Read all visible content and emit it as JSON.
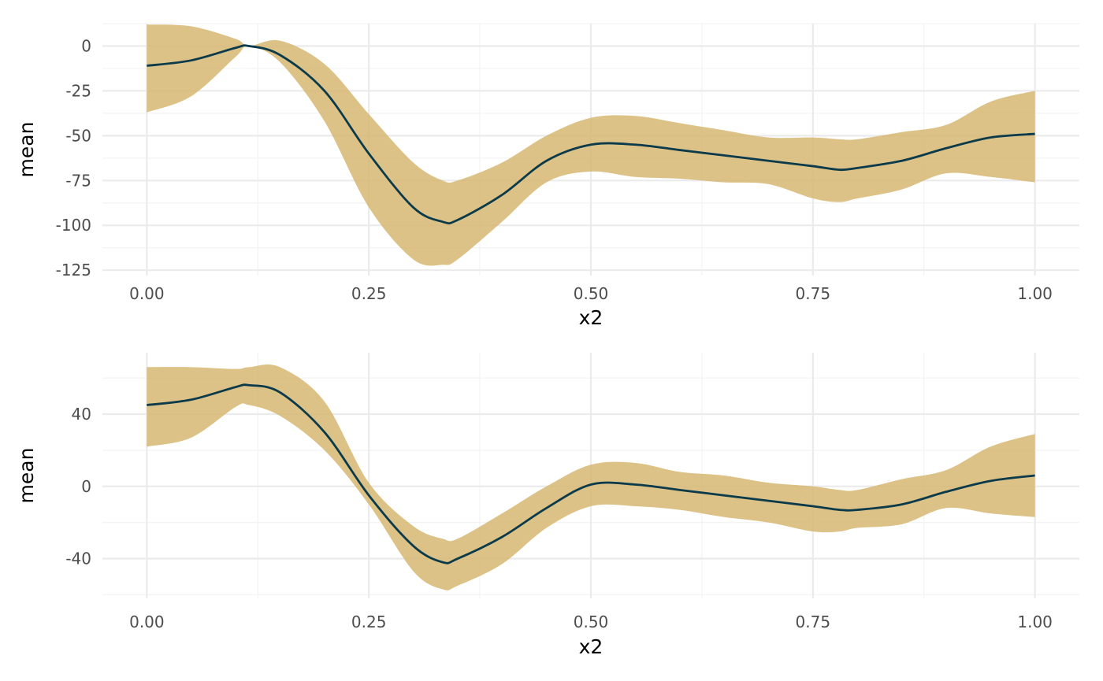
{
  "chart_data": [
    {
      "type": "line",
      "xlabel": "x2",
      "ylabel": "mean",
      "xlim": [
        -0.05,
        1.05
      ],
      "ylim": [
        -128,
        12.5
      ],
      "x_ticks": [
        0,
        0.25,
        0.5,
        0.75,
        1
      ],
      "x_tick_labels": [
        "0.00",
        "0.25",
        "0.50",
        "0.75",
        "1.00"
      ],
      "y_ticks": [
        0,
        -25,
        -50,
        -75,
        -100,
        -125
      ],
      "y_tick_labels": [
        "0",
        "-25",
        "-50",
        "-75",
        "-100",
        "-125"
      ],
      "grid": true,
      "band_color": "#d4b56b",
      "line_color": "#0b3a4a",
      "series": [
        {
          "x": [
            0,
            0.05,
            0.1,
            0.115,
            0.15,
            0.2,
            0.25,
            0.3,
            0.333,
            0.35,
            0.4,
            0.45,
            0.5,
            0.55,
            0.6,
            0.65,
            0.7,
            0.75,
            0.78,
            0.8,
            0.85,
            0.9,
            0.95,
            1.0
          ],
          "mean": [
            -11,
            -8,
            -1,
            0,
            -5,
            -25,
            -60,
            -90,
            -98,
            -97,
            -83,
            -64,
            -55,
            -55,
            -58,
            -61,
            -64,
            -67,
            -69,
            -68,
            -64,
            -57,
            -51,
            -49
          ],
          "lower": [
            -37,
            -28,
            -6,
            0,
            -9,
            -42,
            -90,
            -119,
            -122,
            -119,
            -98,
            -76,
            -70,
            -73,
            -74,
            -76,
            -77,
            -85,
            -87,
            -85,
            -80,
            -71,
            -73,
            -76
          ],
          "upper": [
            12,
            11,
            4,
            0,
            3,
            -10,
            -38,
            -65,
            -75,
            -75,
            -65,
            -50,
            -40,
            -39,
            -43,
            -47,
            -51,
            -51,
            -52,
            -52,
            -48,
            -44,
            -31,
            -25
          ]
        }
      ]
    },
    {
      "type": "line",
      "xlabel": "x2",
      "ylabel": "mean",
      "xlim": [
        -0.05,
        1.05
      ],
      "ylim": [
        -62,
        74
      ],
      "x_ticks": [
        0,
        0.25,
        0.5,
        0.75,
        1
      ],
      "x_tick_labels": [
        "0.00",
        "0.25",
        "0.50",
        "0.75",
        "1.00"
      ],
      "y_ticks": [
        40,
        0,
        -40
      ],
      "y_tick_labels": [
        "40",
        "0",
        "-40"
      ],
      "grid": true,
      "band_color": "#d4b56b",
      "line_color": "#0b3a4a",
      "series": [
        {
          "x": [
            0,
            0.05,
            0.1,
            0.115,
            0.15,
            0.2,
            0.25,
            0.3,
            0.333,
            0.35,
            0.4,
            0.45,
            0.5,
            0.55,
            0.6,
            0.65,
            0.7,
            0.75,
            0.78,
            0.8,
            0.85,
            0.9,
            0.95,
            1.0
          ],
          "mean": [
            45,
            48,
            55,
            56,
            52,
            30,
            -5,
            -33,
            -42,
            -40,
            -28,
            -12,
            1,
            1,
            -2,
            -5,
            -8,
            -11,
            -13,
            -13,
            -10,
            -3,
            3,
            6
          ],
          "lower": [
            22,
            27,
            44,
            45,
            39,
            20,
            -10,
            -47,
            -57,
            -55,
            -43,
            -23,
            -11,
            -11,
            -13,
            -17,
            -20,
            -25,
            -25,
            -23,
            -21,
            -12,
            -15,
            -17
          ],
          "upper": [
            66,
            66,
            65,
            66,
            66,
            47,
            2,
            -22,
            -29,
            -29,
            -15,
            0,
            12,
            13,
            8,
            6,
            2,
            0,
            -2,
            -2,
            4,
            9,
            22,
            29
          ]
        }
      ]
    }
  ]
}
